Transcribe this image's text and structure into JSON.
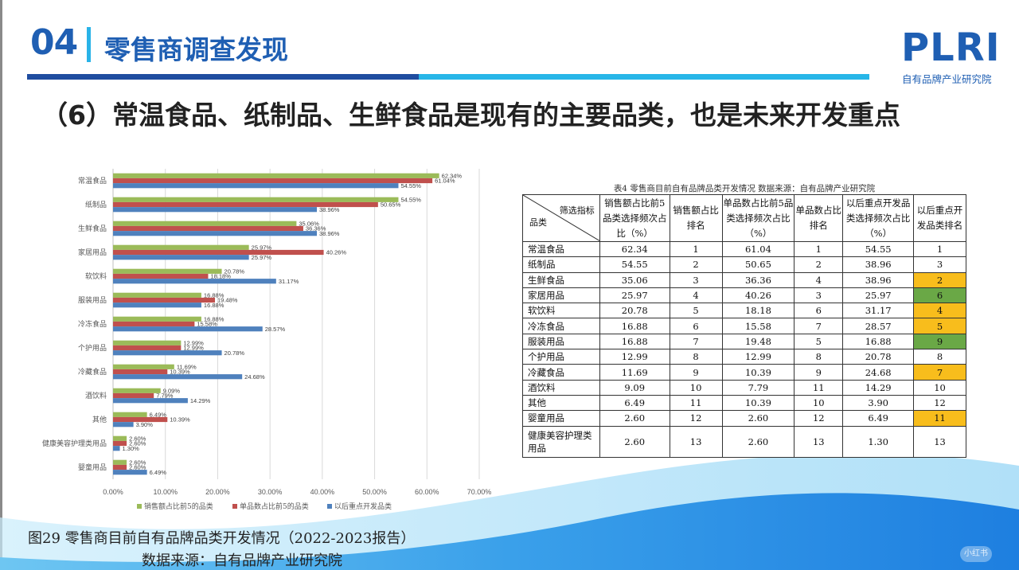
{
  "header": {
    "section_number": "04",
    "section_title": "零售商调查发现",
    "logo": "PLRI",
    "logo_subtitle": "自有品牌产业研究院",
    "headline": "（6）常温食品、纸制品、生鲜食品是现有的主要品类，也是未来开发重点"
  },
  "colors": {
    "series_green": "#9bbb59",
    "series_red": "#c0504d",
    "series_blue": "#4f81bd",
    "highlight_orange": "#f8bd1c",
    "highlight_green": "#6aa846",
    "brand_blue": "#1f5fb3"
  },
  "chart_data": {
    "type": "bar",
    "orientation": "horizontal",
    "categories": [
      "常温食品",
      "纸制品",
      "生鲜食品",
      "家居用品",
      "软饮料",
      "服装用品",
      "冷冻食品",
      "个护用品",
      "冷藏食品",
      "酒饮料",
      "其他",
      "健康美容护理类用品",
      "婴童用品"
    ],
    "series": [
      {
        "name": "销售额占比前5的品类",
        "values": [
          62.34,
          54.55,
          35.06,
          25.97,
          20.78,
          16.88,
          16.88,
          12.99,
          11.69,
          9.09,
          6.49,
          2.6,
          2.6
        ],
        "labels": [
          "62.34%",
          "54.55%",
          "35.06%",
          "25.97%",
          "20.78%",
          "16.88%",
          "16.88%",
          "12.99%",
          "11.69%",
          "9.09%",
          "6.49%",
          "2.60%",
          "2.60%"
        ]
      },
      {
        "name": "单品数占比前5的品类",
        "values": [
          61.04,
          50.65,
          36.36,
          40.26,
          18.18,
          19.48,
          15.58,
          12.99,
          10.39,
          7.79,
          10.39,
          2.6,
          2.6
        ],
        "labels": [
          "61.04%",
          "50.65%",
          "36.36%",
          "40.26%",
          "18.18%",
          "19.48%",
          "15.58%",
          "12.99%",
          "10.39%",
          "7.79%",
          "10.39%",
          "2.60%",
          "2.60%"
        ]
      },
      {
        "name": "以后重点开发品类",
        "values": [
          54.55,
          38.96,
          38.96,
          25.97,
          31.17,
          16.88,
          28.57,
          20.78,
          24.68,
          14.29,
          3.9,
          1.3,
          6.49
        ],
        "labels": [
          "54.55%",
          "38.96%",
          "38.96%",
          "25.97%",
          "31.17%",
          "16.88%",
          "28.57%",
          "20.78%",
          "24.68%",
          "14.29%",
          "3.90%",
          "1.30%",
          "6.49%"
        ]
      }
    ],
    "xlim": [
      0,
      70
    ],
    "xticks": [
      "0.00%",
      "10.00%",
      "20.00%",
      "30.00%",
      "40.00%",
      "50.00%",
      "60.00%",
      "70.00%"
    ],
    "grid": true,
    "legend": "bottom"
  },
  "table": {
    "caption": "表4 零售商目前自有品牌品类开发情况 数据来源：自有品牌产业研究院",
    "corner_top": "筛选指标",
    "corner_bottom": "品类",
    "headers": [
      "销售额占比前5品类选择频次占比（%）",
      "销售额占比排名",
      "单品数占比前5品类选择频次占比（%）",
      "单品数占比排名",
      "以后重点开发品类选择频次占比（%）",
      "以后重点开发品类排名"
    ],
    "rows": [
      {
        "name": "常温食品",
        "c1": "62.34",
        "c2": "1",
        "c3": "61.04",
        "c4": "1",
        "c5": "54.55",
        "c6": "1",
        "hl": ""
      },
      {
        "name": "纸制品",
        "c1": "54.55",
        "c2": "2",
        "c3": "50.65",
        "c4": "2",
        "c5": "38.96",
        "c6": "3",
        "hl": ""
      },
      {
        "name": "生鲜食品",
        "c1": "35.06",
        "c2": "3",
        "c3": "36.36",
        "c4": "4",
        "c5": "38.96",
        "c6": "2",
        "hl": "orange"
      },
      {
        "name": "家居用品",
        "c1": "25.97",
        "c2": "4",
        "c3": "40.26",
        "c4": "3",
        "c5": "25.97",
        "c6": "6",
        "hl": "green"
      },
      {
        "name": "软饮料",
        "c1": "20.78",
        "c2": "5",
        "c3": "18.18",
        "c4": "6",
        "c5": "31.17",
        "c6": "4",
        "hl": "orange"
      },
      {
        "name": "冷冻食品",
        "c1": "16.88",
        "c2": "6",
        "c3": "15.58",
        "c4": "7",
        "c5": "28.57",
        "c6": "5",
        "hl": "orange"
      },
      {
        "name": "服装用品",
        "c1": "16.88",
        "c2": "7",
        "c3": "19.48",
        "c4": "5",
        "c5": "16.88",
        "c6": "9",
        "hl": "green"
      },
      {
        "name": "个护用品",
        "c1": "12.99",
        "c2": "8",
        "c3": "12.99",
        "c4": "8",
        "c5": "20.78",
        "c6": "8",
        "hl": ""
      },
      {
        "name": "冷藏食品",
        "c1": "11.69",
        "c2": "9",
        "c3": "10.39",
        "c4": "9",
        "c5": "24.68",
        "c6": "7",
        "hl": "orange"
      },
      {
        "name": "酒饮料",
        "c1": "9.09",
        "c2": "10",
        "c3": "7.79",
        "c4": "11",
        "c5": "14.29",
        "c6": "10",
        "hl": ""
      },
      {
        "name": "其他",
        "c1": "6.49",
        "c2": "11",
        "c3": "10.39",
        "c4": "10",
        "c5": "3.90",
        "c6": "12",
        "hl": ""
      },
      {
        "name": "婴童用品",
        "c1": "2.60",
        "c2": "12",
        "c3": "2.60",
        "c4": "12",
        "c5": "6.49",
        "c6": "11",
        "hl": "orange"
      },
      {
        "name": "健康美容护理类用品",
        "c1": "2.60",
        "c2": "13",
        "c3": "2.60",
        "c4": "13",
        "c5": "1.30",
        "c6": "13",
        "hl": ""
      }
    ]
  },
  "footer": {
    "figure_caption": "图29 零售商目前自有品牌品类开发情况（2022-2023报告）",
    "figure_source": "数据来源：自有品牌产业研究院",
    "watermark": "小红书"
  }
}
